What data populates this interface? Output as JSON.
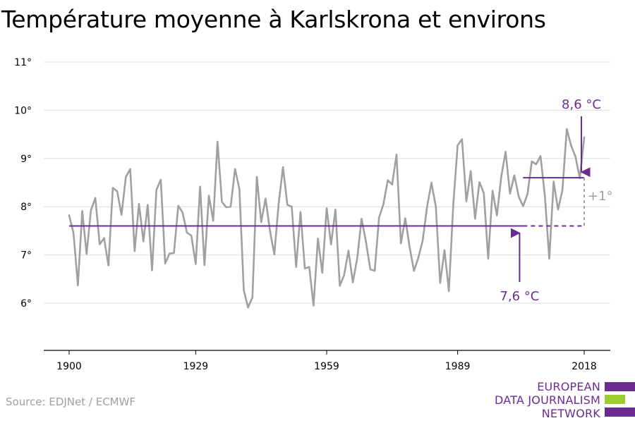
{
  "title": "Température moyenne à Karlskrona et environs",
  "source": "Source: EDJNet / ECMWF",
  "logo": {
    "lines": [
      "EUROPEAN",
      "DATA JOURNALISM",
      "NETWORK"
    ],
    "colors": {
      "purple": "#6a2c91",
      "green": "#9acd32"
    }
  },
  "colors": {
    "series": "#a0a0a0",
    "annotation": "#6a2c91",
    "diff": "#a0a0a0",
    "grid": "#dddddd",
    "axis": "#000000"
  },
  "chart_data": {
    "type": "line",
    "title": "Température moyenne à Karlskrona et environs",
    "xlabel": "",
    "ylabel": "",
    "xlim": [
      1900,
      2018
    ],
    "ylim": [
      5,
      11
    ],
    "x_ticks": [
      1900,
      1929,
      1959,
      1989,
      2018
    ],
    "x_tick_labels": [
      "1900",
      "1929",
      "1959",
      "1989",
      "2018"
    ],
    "y_ticks": [
      6,
      7,
      8,
      9,
      10,
      11
    ],
    "y_tick_labels": [
      "6°",
      "7°",
      "8°",
      "9°",
      "10°",
      "11°"
    ],
    "grid": true,
    "series": [
      {
        "name": "",
        "x_start": 1900,
        "values": [
          7.82,
          7.45,
          6.37,
          7.91,
          7.02,
          7.93,
          8.18,
          7.22,
          7.35,
          6.78,
          8.39,
          8.32,
          7.83,
          8.62,
          8.78,
          7.08,
          8.06,
          7.28,
          8.04,
          6.68,
          8.35,
          8.56,
          6.82,
          7.03,
          7.04,
          8.02,
          7.88,
          7.46,
          7.4,
          6.81,
          8.42,
          6.79,
          8.23,
          7.71,
          9.35,
          8.1,
          7.99,
          8.0,
          8.78,
          8.37,
          6.27,
          5.91,
          6.12,
          8.62,
          7.68,
          8.17,
          7.5,
          7.01,
          8.06,
          8.82,
          8.04,
          8.0,
          6.75,
          7.89,
          6.72,
          6.75,
          5.95,
          7.34,
          6.63,
          7.97,
          7.22,
          7.94,
          6.36,
          6.58,
          7.09,
          6.43,
          6.93,
          7.75,
          7.27,
          6.7,
          6.67,
          7.77,
          8.05,
          8.55,
          8.46,
          9.08,
          7.24,
          7.76,
          7.17,
          6.67,
          6.94,
          7.3,
          8.0,
          8.5,
          8.0,
          6.42,
          7.1,
          6.25,
          8.03,
          9.27,
          9.4,
          8.11,
          8.74,
          7.75,
          8.51,
          8.28,
          6.92,
          8.33,
          7.82,
          8.63,
          9.14,
          8.27,
          8.65,
          8.21,
          8.01,
          8.26,
          8.94,
          8.88,
          9.05,
          8.22,
          6.92,
          8.52,
          7.94,
          8.34,
          9.61,
          9.27,
          9.04,
          8.59,
          9.44
        ]
      }
    ],
    "annotations": {
      "baseline": {
        "value": 7.6,
        "label": "7,6 °C",
        "x_from": 1900,
        "x_to": 2018,
        "x_solid_to": 2004
      },
      "recent": {
        "value": 8.6,
        "label": "8,6 °C",
        "x_from": 2004,
        "x_to": 2018
      },
      "difference": {
        "label": "+1°"
      }
    }
  }
}
